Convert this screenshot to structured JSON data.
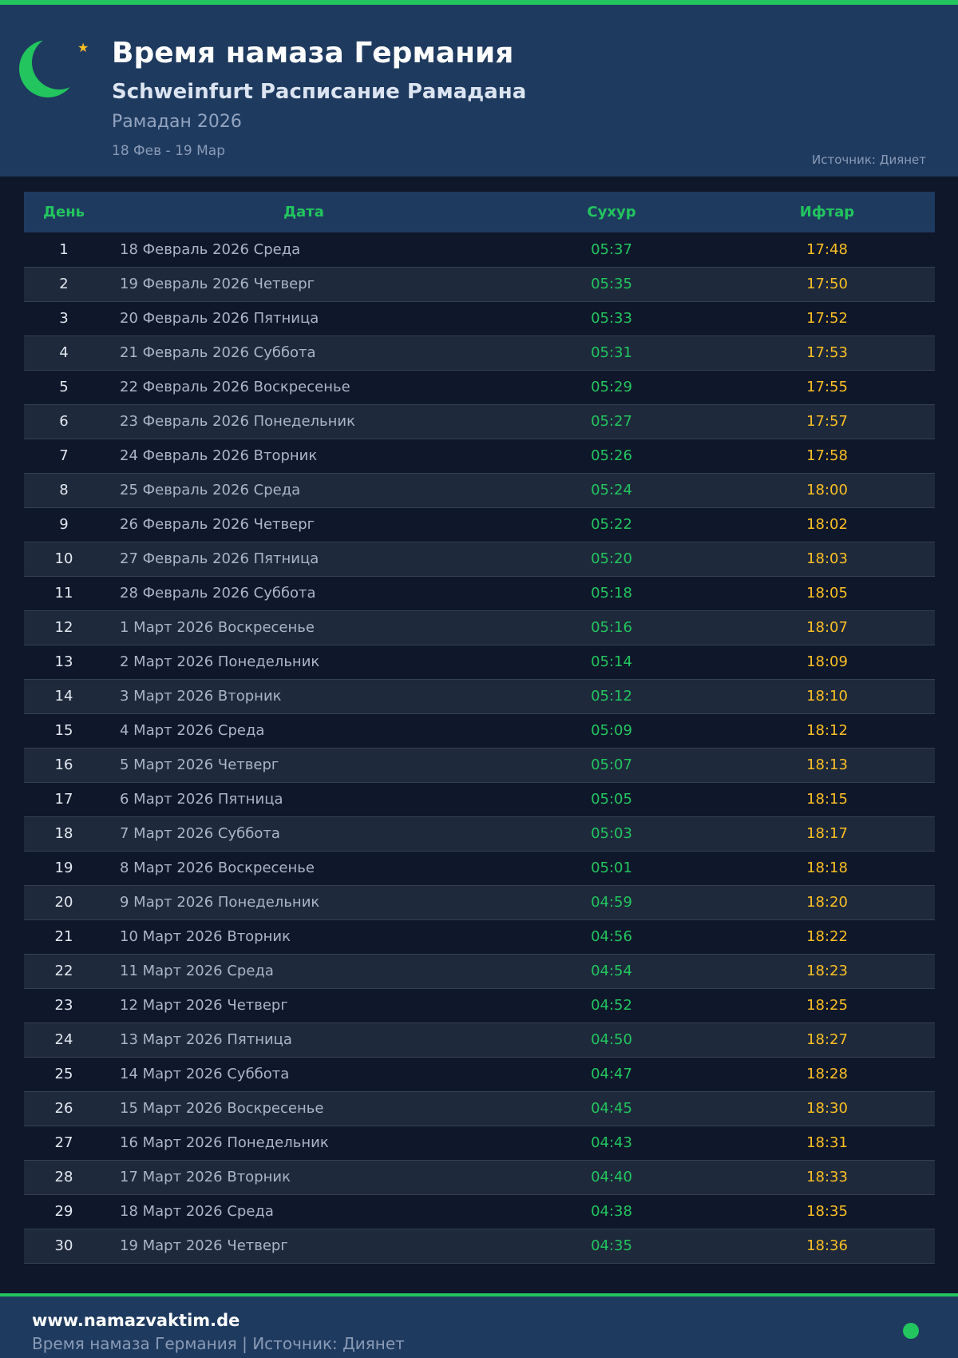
{
  "header": {
    "title": "Время намаза Германия",
    "subtitle": "Schweinfurt Расписание Рамадана",
    "year": "Рамадан 2026",
    "range": "18 Фев - 19 Мар",
    "source": "Источник: Диянет"
  },
  "table": {
    "columns": [
      "День",
      "Дата",
      "Сухур",
      "Ифтар"
    ],
    "rows": [
      [
        "1",
        "18 Февраль 2026 Среда",
        "05:37",
        "17:48"
      ],
      [
        "2",
        "19 Февраль 2026 Четверг",
        "05:35",
        "17:50"
      ],
      [
        "3",
        "20 Февраль 2026 Пятница",
        "05:33",
        "17:52"
      ],
      [
        "4",
        "21 Февраль 2026 Суббота",
        "05:31",
        "17:53"
      ],
      [
        "5",
        "22 Февраль 2026 Воскресенье",
        "05:29",
        "17:55"
      ],
      [
        "6",
        "23 Февраль 2026 Понедельник",
        "05:27",
        "17:57"
      ],
      [
        "7",
        "24 Февраль 2026 Вторник",
        "05:26",
        "17:58"
      ],
      [
        "8",
        "25 Февраль 2026 Среда",
        "05:24",
        "18:00"
      ],
      [
        "9",
        "26 Февраль 2026 Четверг",
        "05:22",
        "18:02"
      ],
      [
        "10",
        "27 Февраль 2026 Пятница",
        "05:20",
        "18:03"
      ],
      [
        "11",
        "28 Февраль 2026 Суббота",
        "05:18",
        "18:05"
      ],
      [
        "12",
        "1 Март 2026 Воскресенье",
        "05:16",
        "18:07"
      ],
      [
        "13",
        "2 Март 2026 Понедельник",
        "05:14",
        "18:09"
      ],
      [
        "14",
        "3 Март 2026 Вторник",
        "05:12",
        "18:10"
      ],
      [
        "15",
        "4 Март 2026 Среда",
        "05:09",
        "18:12"
      ],
      [
        "16",
        "5 Март 2026 Четверг",
        "05:07",
        "18:13"
      ],
      [
        "17",
        "6 Март 2026 Пятница",
        "05:05",
        "18:15"
      ],
      [
        "18",
        "7 Март 2026 Суббота",
        "05:03",
        "18:17"
      ],
      [
        "19",
        "8 Март 2026 Воскресенье",
        "05:01",
        "18:18"
      ],
      [
        "20",
        "9 Март 2026 Понедельник",
        "04:59",
        "18:20"
      ],
      [
        "21",
        "10 Март 2026 Вторник",
        "04:56",
        "18:22"
      ],
      [
        "22",
        "11 Март 2026 Среда",
        "04:54",
        "18:23"
      ],
      [
        "23",
        "12 Март 2026 Четверг",
        "04:52",
        "18:25"
      ],
      [
        "24",
        "13 Март 2026 Пятница",
        "04:50",
        "18:27"
      ],
      [
        "25",
        "14 Март 2026 Суббота",
        "04:47",
        "18:28"
      ],
      [
        "26",
        "15 Март 2026 Воскресенье",
        "04:45",
        "18:30"
      ],
      [
        "27",
        "16 Март 2026 Понедельник",
        "04:43",
        "18:31"
      ],
      [
        "28",
        "17 Март 2026 Вторник",
        "04:40",
        "18:33"
      ],
      [
        "29",
        "18 Март 2026 Среда",
        "04:38",
        "18:35"
      ],
      [
        "30",
        "19 Март 2026 Четверг",
        "04:35",
        "18:36"
      ]
    ]
  },
  "footer": {
    "site": "www.namazvaktim.de",
    "text": "Время намаза Германия | Источник: Диянет"
  },
  "colors": {
    "accent": "#22c55e",
    "iftar": "#fbbf24",
    "header_bg": "#1e3a5f",
    "page_bg": "#0f172a"
  },
  "icons": {
    "logo": "crescent-moon-icon",
    "star": "star-icon",
    "status": "status-dot-icon"
  }
}
